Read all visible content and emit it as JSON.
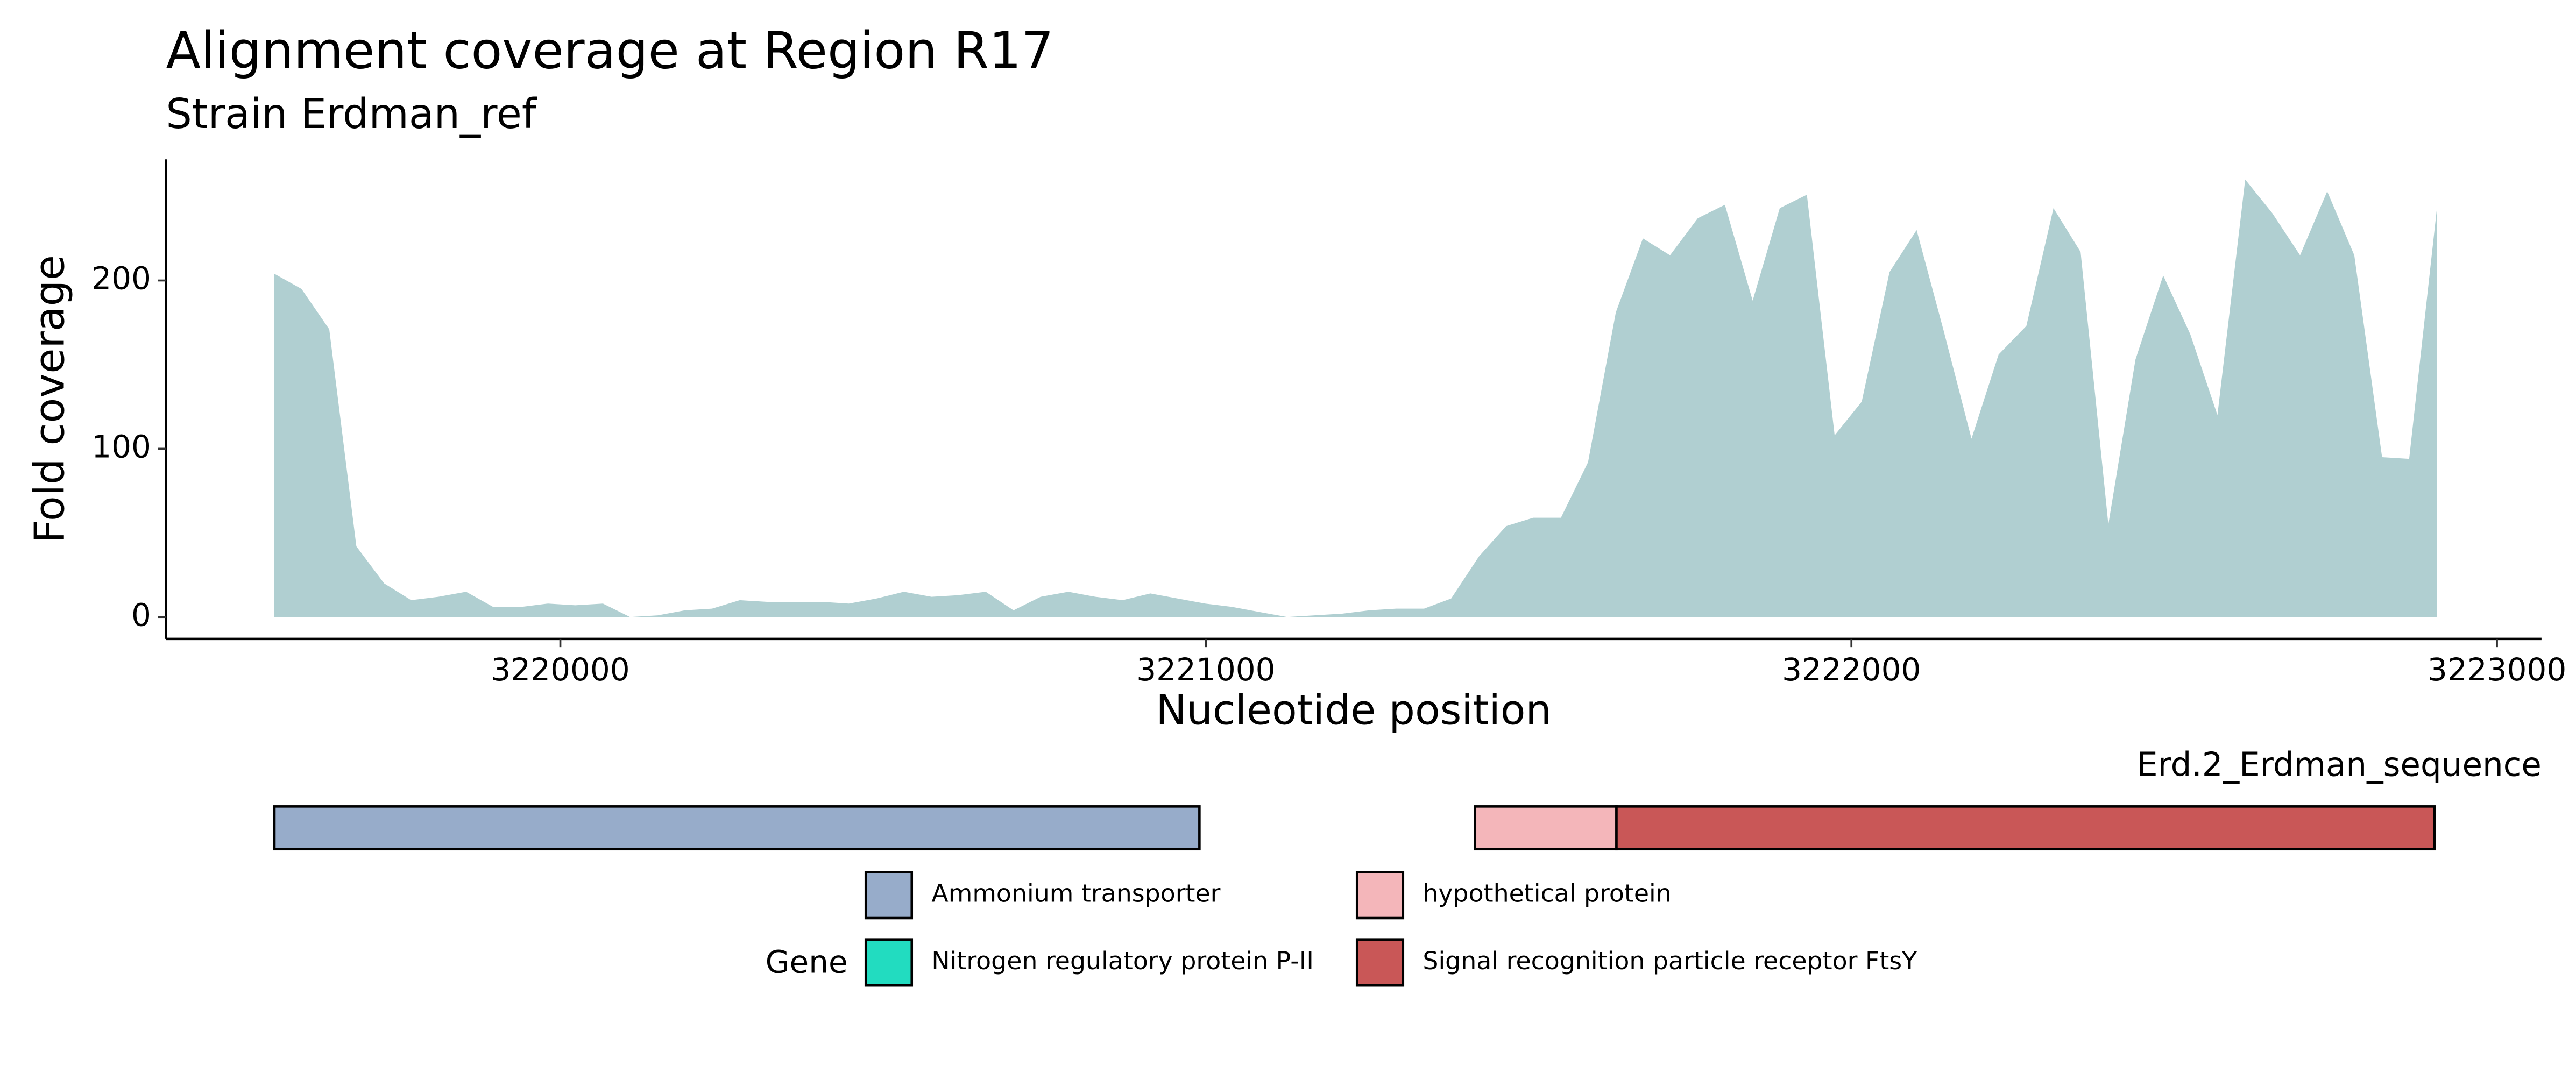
{
  "chart_data": [
    {
      "type": "area",
      "title": "Alignment coverage at Region R17",
      "subtitle": "Strain Erdman_ref",
      "x_label": "Nucleotide position",
      "y_label": "Fold coverage",
      "color": "#b0cfd1",
      "x": [
        3219557,
        3219599,
        3219642,
        3219684,
        3219727,
        3219769,
        3219811,
        3219854,
        3219896,
        3219939,
        3219981,
        3220023,
        3220066,
        3220108,
        3220151,
        3220193,
        3220235,
        3220278,
        3220320,
        3220363,
        3220405,
        3220447,
        3220490,
        3220532,
        3220575,
        3220617,
        3220659,
        3220702,
        3220744,
        3220787,
        3220829,
        3220871,
        3220914,
        3220956,
        3220999,
        3221041,
        3221083,
        3221126,
        3221168,
        3221211,
        3221253,
        3221295,
        3221338,
        3221380,
        3221423,
        3221465,
        3221507,
        3221550,
        3221592,
        3221635,
        3221677,
        3221719,
        3221762,
        3221804,
        3221847,
        3221889,
        3221931,
        3221974,
        3222016,
        3222059,
        3222101,
        3222143,
        3222186,
        3222228,
        3222271,
        3222313,
        3222355,
        3222398,
        3222440,
        3222483,
        3222525,
        3222567,
        3222610,
        3222652,
        3222695,
        3222737,
        3222779,
        3222822,
        3222864,
        3222907
      ],
      "values": [
        204,
        195,
        171,
        42,
        20,
        10,
        12,
        15,
        6,
        6,
        8,
        7,
        8,
        0,
        1,
        4,
        5,
        10,
        9,
        9,
        9,
        8,
        11,
        15,
        12,
        13,
        15,
        4,
        12,
        15,
        12,
        10,
        14,
        11,
        8,
        6,
        3,
        0,
        1,
        2,
        4,
        5,
        5,
        11,
        36,
        54,
        59,
        59,
        92,
        181,
        225,
        215,
        237,
        245,
        188,
        243,
        251,
        108,
        128,
        205,
        230,
        170,
        106,
        156,
        173,
        243,
        217,
        55,
        153,
        203,
        168,
        120,
        260,
        240,
        215,
        253,
        215,
        95,
        94,
        243
      ],
      "xlim": [
        3219389,
        3223069
      ],
      "xticks": [
        3220000,
        3221000,
        3222000,
        3223000
      ],
      "ylim": [
        -13,
        272
      ],
      "yticks": [
        0,
        100,
        200
      ]
    },
    {
      "type": "gene",
      "title": "Erd.2_Erdman_sequence",
      "legend_title": "Gene",
      "series": [
        {
          "name": "Ammonium transporter",
          "color": "#97acca",
          "start": 3219557,
          "end": 3220990
        },
        {
          "name": "Nitrogen regulatory protein P-II",
          "color": "#22dcc0"
        },
        {
          "name": "hypothetical protein",
          "color": "#f4b6ba",
          "start": 3221417,
          "end": 3221636
        },
        {
          "name": "Signal recognition particle receptor FtsY",
          "color": "#c95757",
          "start": 3221636,
          "end": 3222903
        }
      ]
    }
  ]
}
